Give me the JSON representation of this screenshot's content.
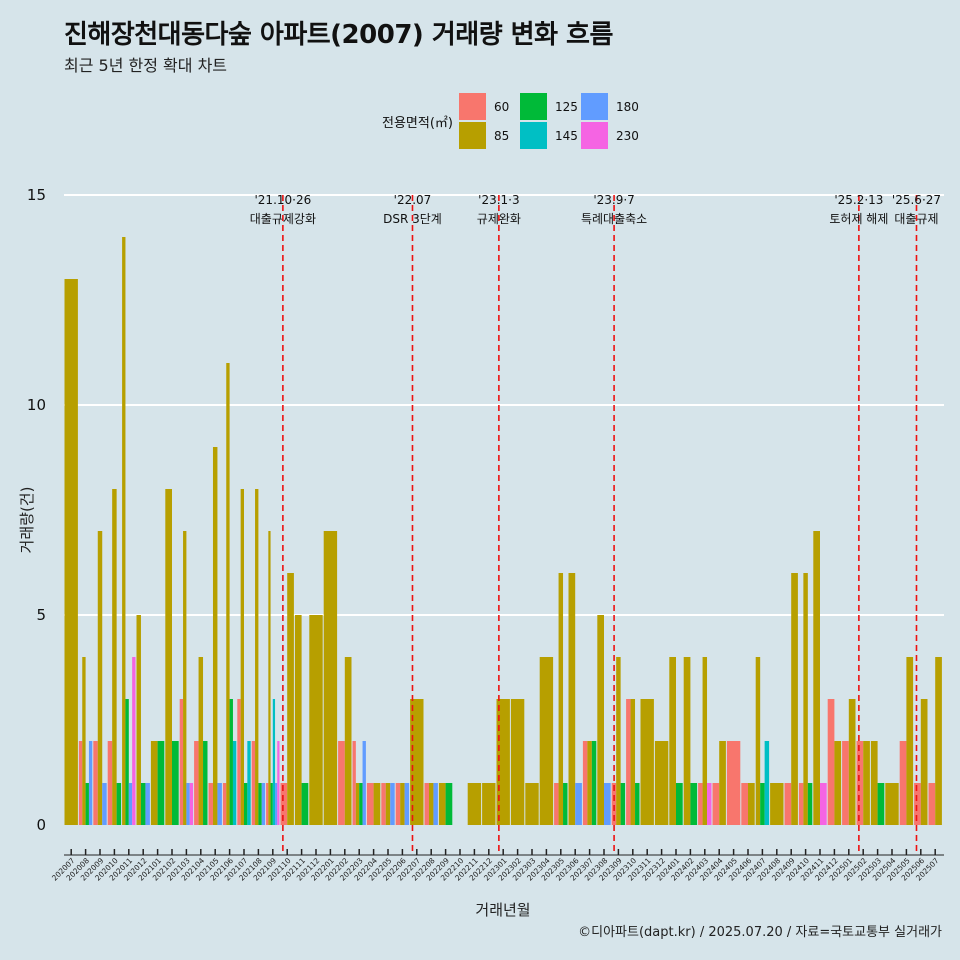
{
  "chart_data": {
    "type": "bar",
    "title": "진해장천대동다숲 아파트(2007) 거래량 변화 흐름",
    "subtitle": "최근 5년 한정 확대 차트",
    "xlabel": "거래년월",
    "ylabel": "거래량(건)",
    "ylim": [
      0,
      15
    ],
    "yticks": [
      0,
      5,
      10,
      15
    ],
    "grid": true,
    "legend_title": "전용면적(㎡)",
    "legend_position": "top",
    "caption": "©디아파트(dapt.kr) / 2025.07.20 / 자료=국토교통부 실거래가",
    "colors": {
      "60": "#f8766d",
      "85": "#b79f00",
      "125": "#00ba38",
      "145": "#00bfc4",
      "180": "#619cff",
      "230": "#f564e3"
    },
    "series_names": [
      "60",
      "85",
      "125",
      "145",
      "180",
      "230"
    ],
    "categories": [
      "202007",
      "202008",
      "202009",
      "202010",
      "202011",
      "202012",
      "202101",
      "202102",
      "202103",
      "202104",
      "202105",
      "202106",
      "202107",
      "202108",
      "202109",
      "202110",
      "202111",
      "202112",
      "202201",
      "202202",
      "202203",
      "202204",
      "202205",
      "202206",
      "202207",
      "202208",
      "202209",
      "202210",
      "202211",
      "202212",
      "202301",
      "202302",
      "202303",
      "202304",
      "202305",
      "202306",
      "202307",
      "202308",
      "202309",
      "202310",
      "202311",
      "202312",
      "202401",
      "202402",
      "202403",
      "202404",
      "202405",
      "202406",
      "202407",
      "202408",
      "202409",
      "202410",
      "202411",
      "202412",
      "202501",
      "202502",
      "202503",
      "202504",
      "202505",
      "202506",
      "202507"
    ],
    "series": [
      {
        "name": "60",
        "values": [
          0,
          2,
          2,
          2,
          0,
          0,
          0,
          0,
          3,
          2,
          1,
          1,
          3,
          2,
          1,
          1,
          0,
          0,
          0,
          2,
          2,
          1,
          1,
          1,
          0,
          1,
          0,
          0,
          0,
          0,
          0,
          0,
          0,
          0,
          1,
          0,
          2,
          0,
          1,
          3,
          0,
          0,
          0,
          0,
          1,
          1,
          2,
          1,
          0,
          0,
          1,
          1,
          0,
          3,
          2,
          2,
          0,
          0,
          2,
          1,
          1
        ]
      },
      {
        "name": "85",
        "values": [
          13,
          4,
          7,
          8,
          14,
          5,
          2,
          8,
          7,
          4,
          9,
          11,
          8,
          8,
          7,
          6,
          5,
          5,
          7,
          4,
          1,
          1,
          1,
          1,
          3,
          1,
          1,
          0,
          1,
          1,
          3,
          3,
          1,
          4,
          6,
          6,
          2,
          5,
          4,
          3,
          3,
          2,
          4,
          4,
          4,
          2,
          0,
          1,
          4,
          1,
          6,
          6,
          7,
          2,
          3,
          2,
          2,
          1,
          4,
          3,
          4
        ]
      },
      {
        "name": "125",
        "values": [
          0,
          1,
          0,
          1,
          3,
          1,
          2,
          2,
          0,
          2,
          0,
          3,
          1,
          1,
          1,
          0,
          1,
          0,
          0,
          0,
          1,
          0,
          0,
          0,
          0,
          0,
          1,
          0,
          0,
          0,
          0,
          0,
          0,
          0,
          1,
          0,
          2,
          0,
          1,
          1,
          0,
          0,
          1,
          1,
          0,
          0,
          0,
          0,
          1,
          0,
          0,
          1,
          0,
          0,
          0,
          0,
          1,
          0,
          0,
          0,
          0
        ]
      },
      {
        "name": "145",
        "values": [
          0,
          0,
          0,
          0,
          0,
          0,
          0,
          0,
          0,
          0,
          0,
          2,
          2,
          0,
          3,
          0,
          0,
          0,
          0,
          0,
          0,
          0,
          0,
          0,
          0,
          0,
          0,
          0,
          0,
          0,
          0,
          0,
          0,
          0,
          0,
          0,
          0,
          0,
          0,
          0,
          0,
          0,
          0,
          0,
          0,
          0,
          0,
          0,
          2,
          0,
          0,
          0,
          0,
          0,
          0,
          0,
          0,
          0,
          0,
          0,
          0
        ]
      },
      {
        "name": "180",
        "values": [
          0,
          2,
          1,
          0,
          1,
          1,
          0,
          0,
          1,
          0,
          1,
          0,
          0,
          1,
          1,
          0,
          0,
          0,
          0,
          0,
          2,
          0,
          1,
          1,
          0,
          1,
          0,
          0,
          0,
          0,
          0,
          0,
          0,
          0,
          0,
          1,
          0,
          1,
          0,
          0,
          0,
          0,
          0,
          0,
          0,
          0,
          0,
          0,
          0,
          0,
          0,
          0,
          0,
          0,
          0,
          0,
          0,
          0,
          0,
          0,
          0
        ]
      },
      {
        "name": "230",
        "values": [
          0,
          0,
          0,
          0,
          4,
          0,
          0,
          0,
          1,
          0,
          0,
          0,
          0,
          0,
          2,
          0,
          0,
          0,
          0,
          0,
          0,
          0,
          0,
          0,
          0,
          0,
          0,
          0,
          0,
          0,
          0,
          0,
          0,
          0,
          0,
          0,
          0,
          0,
          0,
          0,
          0,
          0,
          0,
          0,
          1,
          0,
          0,
          0,
          0,
          0,
          0,
          0,
          1,
          0,
          0,
          0,
          0,
          0,
          0,
          0,
          0
        ]
      }
    ],
    "annotations": [
      {
        "date": "'21.10·26",
        "label": "대출규제강화",
        "index": 15.2
      },
      {
        "date": "'22.07",
        "label": "DSR 3단계",
        "index": 24.2
      },
      {
        "date": "'23.1·3",
        "label": "규제완화",
        "index": 30.2
      },
      {
        "date": "'23.9·7",
        "label": "특례대출축소",
        "index": 38.2
      },
      {
        "date": "'25.2·13",
        "label": "토허제 해제",
        "index": 55.2
      },
      {
        "date": "'25.6·27",
        "label": "대출규제",
        "index": 59.2
      }
    ]
  }
}
